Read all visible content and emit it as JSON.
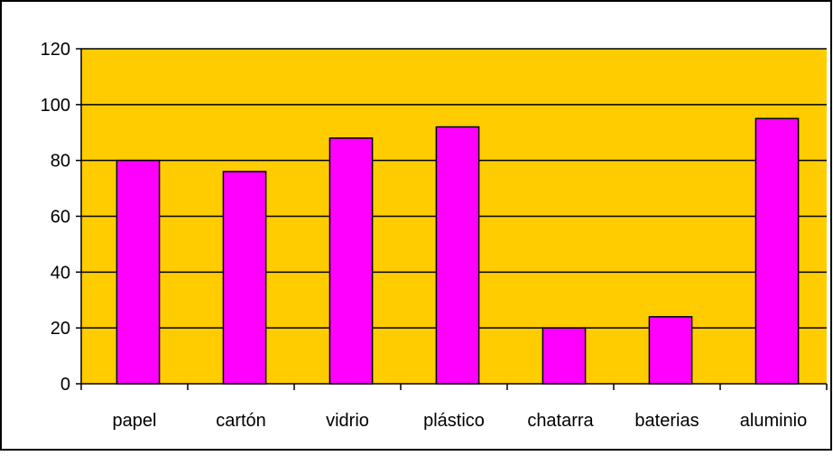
{
  "colors": {
    "plot_bg": "#FFCC00",
    "bar_fill": "#FF00FF",
    "bar_stroke": "#000000",
    "grid": "#000000",
    "frame": "#000000",
    "page_bg": "#FFFFFF"
  },
  "chart_data": {
    "type": "bar",
    "title": "",
    "xlabel": "",
    "ylabel": "",
    "categories": [
      "papel",
      "cartón",
      "vidrio",
      "plástico",
      "chatarra",
      "baterias",
      "aluminio"
    ],
    "values": [
      80,
      76,
      88,
      92,
      20,
      24,
      95
    ],
    "ylim": [
      0,
      120
    ],
    "yticks": [
      0,
      20,
      40,
      60,
      80,
      100,
      120
    ],
    "ytick_labels": [
      "0",
      "20",
      "40",
      "60",
      "80",
      "100",
      "120"
    ],
    "grid": true,
    "legend": "none"
  }
}
